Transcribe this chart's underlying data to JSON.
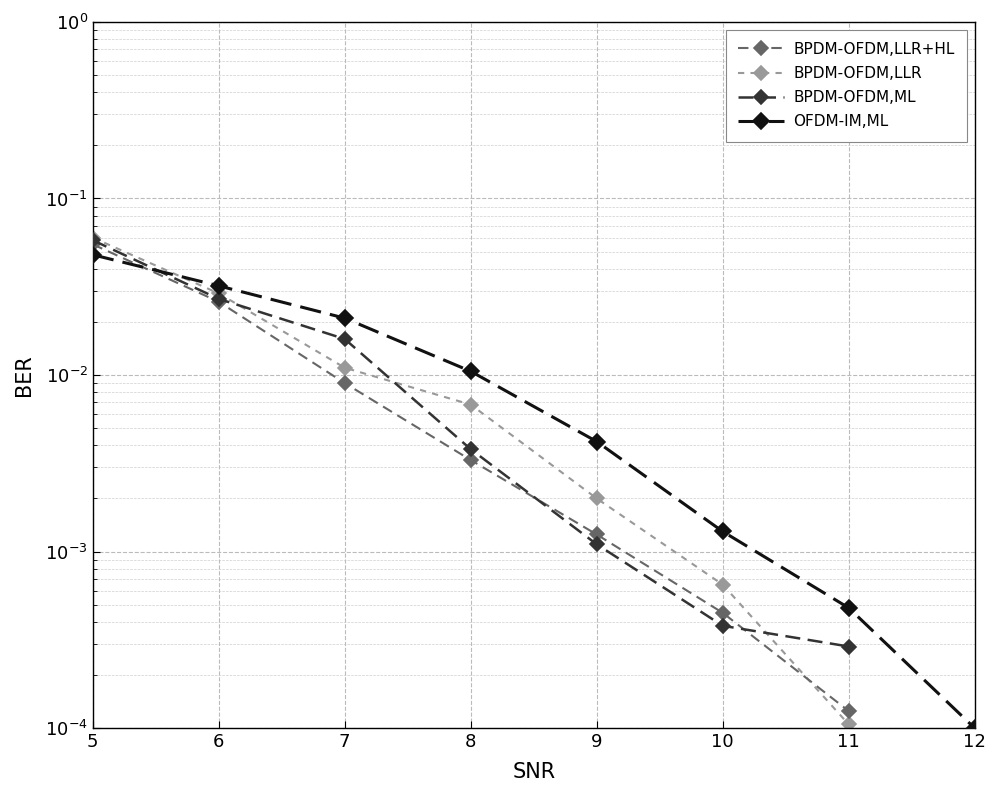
{
  "snr": [
    5,
    6,
    7,
    8,
    9,
    10,
    11,
    12
  ],
  "series": [
    {
      "label": "BPDM-OFDM,LLR+HL",
      "color": "#666666",
      "linewidth": 1.5,
      "marker": "D",
      "markersize": 7,
      "markerfacecolor": "#666666",
      "zorder": 3,
      "ber": [
        0.055,
        0.026,
        0.009,
        0.0033,
        0.00125,
        0.00045,
        0.000125,
        null
      ]
    },
    {
      "label": "BPDM-OFDM,LLR",
      "color": "#999999",
      "linewidth": 1.5,
      "marker": "D",
      "markersize": 7,
      "markerfacecolor": "#999999",
      "zorder": 2,
      "ber": [
        0.06,
        0.029,
        0.011,
        0.0068,
        0.002,
        0.00065,
        0.000105,
        null
      ]
    },
    {
      "label": "BPDM-OFDM,ML",
      "color": "#333333",
      "linewidth": 1.8,
      "marker": "D",
      "markersize": 7,
      "markerfacecolor": "#333333",
      "zorder": 4,
      "ber": [
        0.058,
        0.027,
        0.016,
        0.0038,
        0.0011,
        0.00038,
        0.00029,
        null
      ]
    },
    {
      "label": "OFDM-IM,ML",
      "color": "#111111",
      "linewidth": 2.2,
      "marker": "D",
      "markersize": 8,
      "markerfacecolor": "#111111",
      "zorder": 5,
      "ber": [
        0.048,
        0.032,
        0.021,
        0.0105,
        0.0042,
        0.0013,
        0.00048,
        0.0001
      ]
    }
  ],
  "xlim": [
    5,
    12
  ],
  "ylim": [
    0.0001,
    1.5
  ],
  "xlabel": "SNR",
  "ylabel": "BER",
  "grid_color": "#bbbbbb",
  "background_color": "#ffffff",
  "legend_loc": "upper right",
  "legend_fontsize": 11,
  "tick_fontsize": 13,
  "label_fontsize": 15
}
